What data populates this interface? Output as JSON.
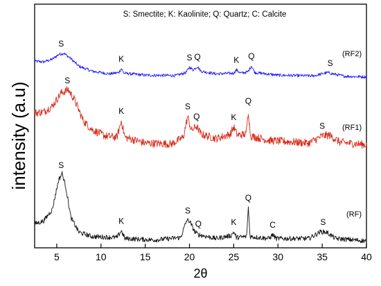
{
  "chart_data": {
    "type": "line",
    "title": "",
    "xlabel": "2θ",
    "ylabel": "intensity (a.u)",
    "xlim": [
      2.5,
      40
    ],
    "x_ticks": [
      5,
      10,
      15,
      20,
      25,
      30,
      35,
      40
    ],
    "y_ticks_shown": false,
    "grid": false,
    "legend_text": "S: Smectite; K: Kaolinite; Q: Quartz; C: Calcite",
    "legend_placement": "top-center",
    "series": [
      {
        "name": "(RF2)",
        "color": "#1a1aff",
        "noise": 0.045,
        "profile": [
          [
            2.5,
            0.6
          ],
          [
            3.5,
            0.58
          ],
          [
            4.5,
            0.66
          ],
          [
            5.2,
            0.8
          ],
          [
            5.8,
            0.84
          ],
          [
            6.5,
            0.7
          ],
          [
            7.5,
            0.45
          ],
          [
            9.0,
            0.3
          ],
          [
            11.0,
            0.22
          ],
          [
            12.0,
            0.26
          ],
          [
            12.3,
            0.38
          ],
          [
            12.6,
            0.24
          ],
          [
            15.0,
            0.18
          ],
          [
            18.5,
            0.17
          ],
          [
            19.6,
            0.26
          ],
          [
            20.0,
            0.42
          ],
          [
            20.4,
            0.34
          ],
          [
            20.9,
            0.44
          ],
          [
            21.3,
            0.3
          ],
          [
            23.0,
            0.22
          ],
          [
            25.0,
            0.24
          ],
          [
            25.3,
            0.34
          ],
          [
            25.8,
            0.24
          ],
          [
            26.6,
            0.28
          ],
          [
            27.0,
            0.46
          ],
          [
            27.4,
            0.26
          ],
          [
            30.0,
            0.18
          ],
          [
            34.0,
            0.16
          ],
          [
            35.6,
            0.26
          ],
          [
            36.2,
            0.22
          ],
          [
            37.5,
            0.15
          ],
          [
            40.0,
            0.13
          ]
        ],
        "peaks": [
          {
            "label": "S",
            "x": 5.5
          },
          {
            "label": "K",
            "x": 12.3
          },
          {
            "label": "S",
            "x": 20.0
          },
          {
            "label": "Q",
            "x": 20.9
          },
          {
            "label": "K",
            "x": 25.3
          },
          {
            "label": "Q",
            "x": 27.0
          },
          {
            "label": "S",
            "x": 35.9
          }
        ]
      },
      {
        "name": "(RF1)",
        "color": "#d82a1a",
        "noise": 0.09,
        "profile": [
          [
            2.5,
            1.1
          ],
          [
            3.5,
            1.12
          ],
          [
            4.5,
            1.25
          ],
          [
            5.5,
            1.55
          ],
          [
            6.3,
            1.62
          ],
          [
            7.0,
            1.4
          ],
          [
            8.0,
            0.92
          ],
          [
            9.0,
            0.72
          ],
          [
            10.5,
            0.58
          ],
          [
            11.8,
            0.55
          ],
          [
            12.3,
            0.92
          ],
          [
            12.7,
            0.55
          ],
          [
            15.0,
            0.42
          ],
          [
            18.0,
            0.4
          ],
          [
            19.3,
            0.55
          ],
          [
            19.8,
            1.02
          ],
          [
            20.2,
            0.7
          ],
          [
            20.8,
            0.8
          ],
          [
            21.3,
            0.62
          ],
          [
            23.0,
            0.52
          ],
          [
            24.6,
            0.62
          ],
          [
            25.0,
            0.78
          ],
          [
            25.4,
            0.6
          ],
          [
            26.4,
            0.62
          ],
          [
            26.65,
            1.15
          ],
          [
            26.9,
            0.58
          ],
          [
            29.0,
            0.48
          ],
          [
            33.5,
            0.42
          ],
          [
            35.0,
            0.58
          ],
          [
            35.8,
            0.6
          ],
          [
            37.0,
            0.44
          ],
          [
            40.0,
            0.38
          ]
        ],
        "peaks": [
          {
            "label": "S",
            "x": 6.2
          },
          {
            "label": "K",
            "x": 12.3
          },
          {
            "label": "S",
            "x": 19.8
          },
          {
            "label": "Q",
            "x": 20.8
          },
          {
            "label": "K",
            "x": 25.0
          },
          {
            "label": "Q",
            "x": 26.65
          },
          {
            "label": "S",
            "x": 35.0
          }
        ]
      },
      {
        "name": "(RF)",
        "color": "#111111",
        "noise": 0.05,
        "profile": [
          [
            2.5,
            0.42
          ],
          [
            3.5,
            0.48
          ],
          [
            4.5,
            0.72
          ],
          [
            5.2,
            1.32
          ],
          [
            5.6,
            1.46
          ],
          [
            6.0,
            1.2
          ],
          [
            6.6,
            0.55
          ],
          [
            7.5,
            0.25
          ],
          [
            9.0,
            0.16
          ],
          [
            11.8,
            0.14
          ],
          [
            12.3,
            0.28
          ],
          [
            12.7,
            0.12
          ],
          [
            16.0,
            0.09
          ],
          [
            19.0,
            0.14
          ],
          [
            19.7,
            0.5
          ],
          [
            20.0,
            0.48
          ],
          [
            20.6,
            0.26
          ],
          [
            21.0,
            0.2
          ],
          [
            23.0,
            0.12
          ],
          [
            24.7,
            0.18
          ],
          [
            25.0,
            0.26
          ],
          [
            25.3,
            0.14
          ],
          [
            26.45,
            0.16
          ],
          [
            26.65,
            0.76
          ],
          [
            26.85,
            0.16
          ],
          [
            29.0,
            0.12
          ],
          [
            29.4,
            0.2
          ],
          [
            29.8,
            0.12
          ],
          [
            33.5,
            0.12
          ],
          [
            34.8,
            0.26
          ],
          [
            35.5,
            0.25
          ],
          [
            36.5,
            0.12
          ],
          [
            40.0,
            0.07
          ]
        ],
        "peaks": [
          {
            "label": "S",
            "x": 5.5
          },
          {
            "label": "K",
            "x": 12.3
          },
          {
            "label": "S",
            "x": 19.8
          },
          {
            "label": "Q",
            "x": 21.0
          },
          {
            "label": "K",
            "x": 25.0
          },
          {
            "label": "Q",
            "x": 26.65
          },
          {
            "label": "C",
            "x": 29.4
          },
          {
            "label": "S",
            "x": 35.1
          }
        ]
      }
    ]
  }
}
